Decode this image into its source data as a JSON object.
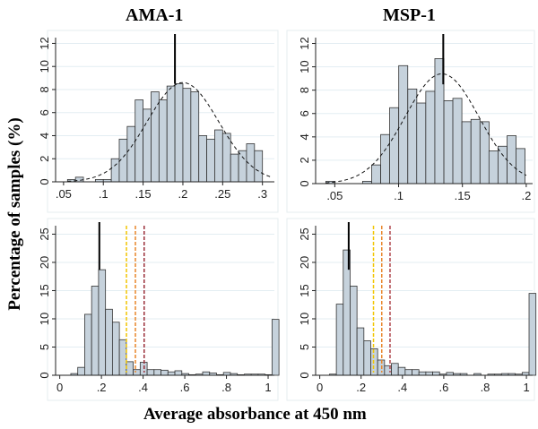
{
  "chart_data": {
    "ylabel": "Percentage of samples (%)",
    "xlabel": "Average absorbance at 450 nm",
    "panels": [
      {
        "type": "bar",
        "title": "AMA-1",
        "xlim": [
          0.04,
          0.315
        ],
        "ylim": [
          0,
          12.5
        ],
        "xticks": [
          0.05,
          0.1,
          0.15,
          0.2,
          0.25,
          0.3
        ],
        "xtick_labels": [
          ".05",
          ".1",
          ".15",
          ".2",
          ".25",
          ".3"
        ],
        "yticks": [
          0,
          2,
          4,
          6,
          8,
          10,
          12
        ],
        "ytick_labels": [
          "0",
          "2",
          "4",
          "6",
          "8",
          "10",
          "12"
        ],
        "bin_width": 0.01,
        "bins_start": [
          0.055,
          0.065,
          0.09,
          0.1,
          0.11,
          0.12,
          0.13,
          0.14,
          0.15,
          0.16,
          0.17,
          0.18,
          0.19,
          0.2,
          0.21,
          0.22,
          0.23,
          0.24,
          0.25,
          0.26,
          0.27,
          0.28,
          0.29,
          0.3
        ],
        "values": [
          0.2,
          0.4,
          0.2,
          0.2,
          2.0,
          3.7,
          4.8,
          7.1,
          6.3,
          7.8,
          7.1,
          8.3,
          8.5,
          8.1,
          7.8,
          4.0,
          3.7,
          4.5,
          4.2,
          2.4,
          2.7,
          3.3,
          2.7,
          0
        ],
        "mean_line": 0.19,
        "normal_curve": {
          "mean": 0.2,
          "sd": 0.045,
          "peak": 8.6
        },
        "cutoffs": []
      },
      {
        "type": "bar",
        "title": "MSP-1",
        "xlim": [
          0.035,
          0.205
        ],
        "ylim": [
          0,
          12.5
        ],
        "xticks": [
          0.05,
          0.1,
          0.15,
          0.2
        ],
        "xtick_labels": [
          ".05",
          ".1",
          ".15",
          ".2"
        ],
        "yticks": [
          0,
          2,
          4,
          6,
          8,
          10,
          12
        ],
        "ytick_labels": [
          "0",
          "2",
          "4",
          "6",
          "8",
          "10",
          "12"
        ],
        "bin_width": 0.00707,
        "bins_start": [
          0.043,
          0.0718,
          0.0789,
          0.086,
          0.093,
          0.1001,
          0.1072,
          0.1142,
          0.1213,
          0.1284,
          0.1355,
          0.1425,
          0.1496,
          0.1567,
          0.1638,
          0.1708,
          0.1779,
          0.185,
          0.192
        ],
        "values": [
          0.2,
          0.2,
          1.6,
          4.2,
          6.5,
          10.1,
          8.1,
          6.9,
          7.9,
          10.7,
          7.1,
          7.3,
          5.3,
          5.5,
          5.3,
          2.8,
          3.2,
          4.1,
          3.0
        ],
        "mean_line": 0.135,
        "normal_curve": {
          "mean": 0.134,
          "sd": 0.029,
          "peak": 9.4
        },
        "cutoffs": []
      },
      {
        "type": "bar",
        "title": "",
        "xlim": [
          -0.02,
          1.03
        ],
        "ylim": [
          0,
          26.5
        ],
        "xticks": [
          0,
          0.2,
          0.4,
          0.6,
          0.8,
          1
        ],
        "xtick_labels": [
          "0",
          ".2",
          ".4",
          ".6",
          ".8",
          "1"
        ],
        "yticks": [
          0,
          5,
          10,
          15,
          20,
          25
        ],
        "ytick_labels": [
          "0",
          "5",
          "10",
          "15",
          "20",
          "25"
        ],
        "bin_width": 0.0333,
        "values": [
          0.3,
          1.4,
          10.8,
          15.8,
          18.7,
          11.7,
          9.4,
          6.3,
          2.4,
          1.0,
          2.3,
          1.0,
          1.0,
          0.9,
          0.6,
          0.8,
          0.3,
          0.1,
          0.2,
          0.6,
          0.4,
          0.1,
          0.5,
          0.3,
          0.1,
          0.2,
          0.2,
          0.2,
          0.1,
          9.9
        ],
        "bins_first": 0.053,
        "mean_line": 0.19,
        "normal_curve": null,
        "cutoffs": [
          {
            "x": 0.32,
            "color": "#f2c500"
          },
          {
            "x": 0.363,
            "color": "#e8862a"
          },
          {
            "x": 0.405,
            "color": "#9b2f3a"
          }
        ]
      },
      {
        "type": "bar",
        "title": "",
        "xlim": [
          -0.02,
          1.03
        ],
        "ylim": [
          0,
          26.5
        ],
        "xticks": [
          0,
          0.2,
          0.4,
          0.6,
          0.8,
          1
        ],
        "xtick_labels": [
          "0",
          ".2",
          ".4",
          ".6",
          ".8",
          "1"
        ],
        "yticks": [
          0,
          5,
          10,
          15,
          20,
          25
        ],
        "ytick_labels": [
          "0",
          "5",
          "10",
          "15",
          "20",
          "25"
        ],
        "bin_width": 0.0333,
        "values": [
          0.2,
          12.6,
          22.2,
          15.8,
          8.4,
          6.1,
          4.7,
          2.7,
          1.7,
          2.1,
          1.4,
          1.0,
          1.0,
          0.6,
          0.6,
          0.6,
          0.2,
          0.5,
          0.3,
          0.3,
          0,
          0.3,
          0,
          0.2,
          0.2,
          0.3,
          0.3,
          0.2,
          0.5,
          14.5
        ],
        "bins_first": 0.047,
        "mean_line": 0.14,
        "normal_curve": null,
        "cutoffs": [
          {
            "x": 0.26,
            "color": "#f2c500"
          },
          {
            "x": 0.3,
            "color": "#e8862a"
          },
          {
            "x": 0.34,
            "color": "#b0464c"
          }
        ]
      }
    ],
    "colors": {
      "bar_fill": "#c6d2dc",
      "bar_stroke": "#333333",
      "grid": "#e3edf2"
    }
  }
}
